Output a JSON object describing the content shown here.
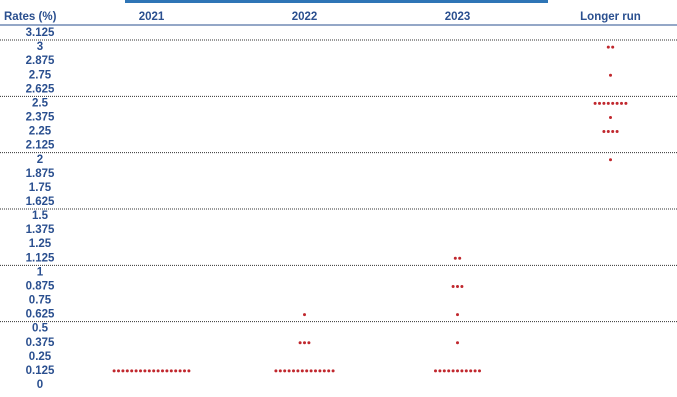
{
  "chart_data": {
    "type": "dot",
    "y_label": "Rates (%)",
    "color": "#c0272d",
    "series": [
      {
        "name": "2021",
        "values": [
          0.125,
          0.125,
          0.125,
          0.125,
          0.125,
          0.125,
          0.125,
          0.125,
          0.125,
          0.125,
          0.125,
          0.125,
          0.125,
          0.125,
          0.125,
          0.125,
          0.125,
          0.125
        ]
      },
      {
        "name": "2022",
        "values": [
          0.125,
          0.125,
          0.125,
          0.125,
          0.125,
          0.125,
          0.125,
          0.125,
          0.125,
          0.125,
          0.125,
          0.125,
          0.125,
          0.125,
          0.375,
          0.375,
          0.375,
          0.625
        ]
      },
      {
        "name": "2023",
        "values": [
          0.125,
          0.125,
          0.125,
          0.125,
          0.125,
          0.125,
          0.125,
          0.125,
          0.125,
          0.125,
          0.125,
          0.375,
          0.625,
          0.875,
          0.875,
          0.875,
          1.125,
          1.125
        ]
      },
      {
        "name": "Longer run",
        "values": [
          2,
          2.25,
          2.25,
          2.25,
          2.25,
          2.375,
          2.5,
          2.5,
          2.5,
          2.5,
          2.5,
          2.5,
          2.5,
          2.5,
          2.75,
          3,
          3
        ]
      }
    ],
    "ylim": [
      0,
      3.125
    ],
    "yticks": [
      0,
      0.125,
      0.25,
      0.375,
      0.5,
      0.625,
      0.75,
      0.875,
      1,
      1.125,
      1.25,
      1.375,
      1.5,
      1.625,
      1.75,
      1.875,
      2,
      2.125,
      2.25,
      2.375,
      2.5,
      2.625,
      2.75,
      2.875,
      3,
      3.125
    ]
  }
}
